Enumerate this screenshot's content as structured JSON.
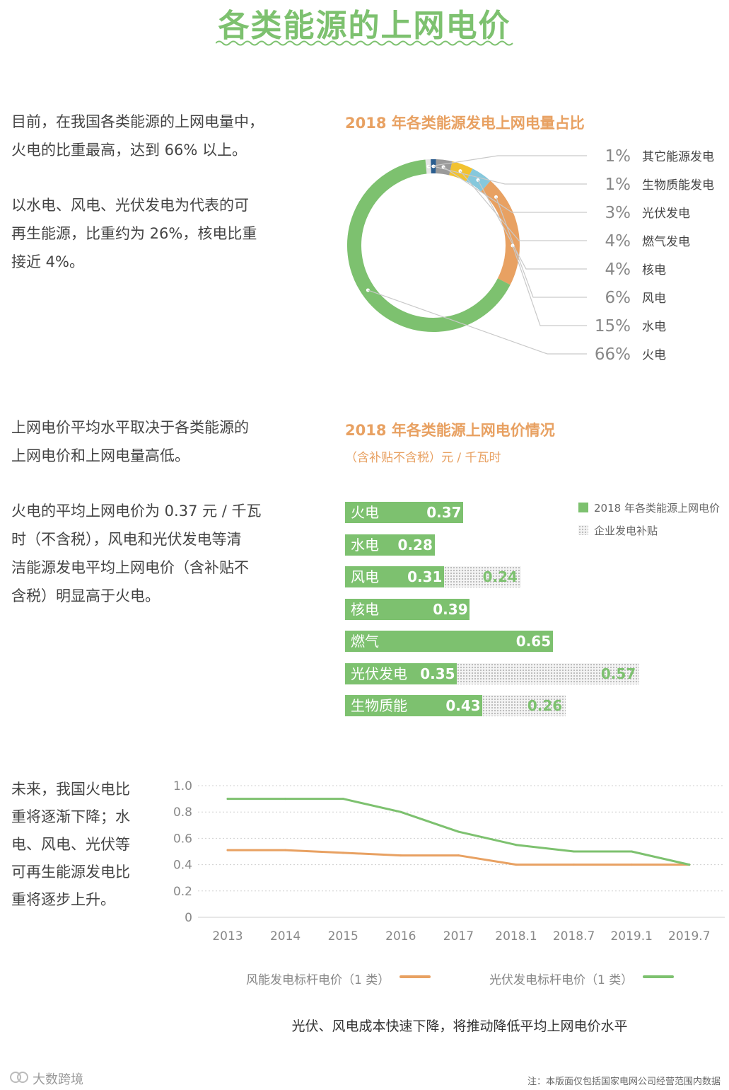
{
  "title": "各类能源的上网电价",
  "intro": {
    "p1": "目前，在我国各类能源的上网电量中，\n火电的比重最高，达到 66% 以上。",
    "p2": "以水电、风电、光伏发电为代表的可\n再生能源，比重约为 26%，核电比重\n接近 4%。",
    "p3": "上网电价平均水平取决于各类能源的\n上网电价和上网电量高低。",
    "p4": "火电的平均上网电价为 0.37 元 / 千瓦\n时（不含税），风电和光伏发电等清\n洁能源发电平均上网电价（含补贴不\n含税）明显高于火电。",
    "p5": "未来，我国火电比\n重将逐渐下降；水\n电、风电、光伏等\n可再生能源发电比\n重将逐步上升。"
  },
  "colors": {
    "green": "#7dc16f",
    "orange": "#e8a162"
  },
  "chart_data": [
    {
      "type": "pie",
      "title": "2018 年各类能源发电上网电量占比",
      "slices": [
        {
          "name": "其它能源发电",
          "value": 1,
          "label": "1%",
          "color": "#e6e6e6"
        },
        {
          "name": "生物质能发电",
          "value": 1,
          "label": "1%",
          "color": "#2a5d8f"
        },
        {
          "name": "光伏发电",
          "value": 3,
          "label": "3%",
          "color": "#9a9a9a"
        },
        {
          "name": "燃气发电",
          "value": 4,
          "label": "4%",
          "color": "#f2c230"
        },
        {
          "name": "核电",
          "value": 4,
          "label": "4%",
          "color": "#86c8dc"
        },
        {
          "name": "风电",
          "value": 6,
          "label": "6%",
          "color": "#e8a162"
        },
        {
          "name": "水电",
          "value": 15,
          "label": "15%",
          "color": "#e8a162"
        },
        {
          "name": "火电",
          "value": 66,
          "label": "66%",
          "color": "#7dc16f"
        }
      ]
    },
    {
      "type": "bar",
      "title": "2018 年各类能源上网电价情况",
      "subtitle": "（含补贴不含税）元 / 千瓦时",
      "categories": [
        "火电",
        "水电",
        "风电",
        "核电",
        "燃气",
        "光伏发电",
        "生物质能"
      ],
      "series": [
        {
          "name": "2018 年各类能源上网电价",
          "values": [
            0.37,
            0.28,
            0.31,
            0.39,
            0.65,
            0.35,
            0.43
          ]
        },
        {
          "name": "企业发电补贴",
          "values": [
            null,
            null,
            0.24,
            null,
            null,
            0.57,
            0.26
          ]
        }
      ]
    },
    {
      "type": "line",
      "x": [
        "2013",
        "2014",
        "2015",
        "2016",
        "2017",
        "2018.1",
        "2018.7",
        "2019.1",
        "2019.7"
      ],
      "ylim": [
        0,
        1.0
      ],
      "yticks": [
        "0",
        "0.2",
        "0.4",
        "0.6",
        "0.8",
        "1.0"
      ],
      "grid": true,
      "series": [
        {
          "name": "风能发电标杆电价（1 类）",
          "values": [
            0.51,
            0.51,
            0.49,
            0.47,
            0.47,
            0.4,
            0.4,
            0.4,
            0.4
          ],
          "color": "#e8a162"
        },
        {
          "name": "光伏发电标杆电价（1 类）",
          "values": [
            0.9,
            0.9,
            0.9,
            0.8,
            0.65,
            0.55,
            0.5,
            0.5,
            0.4
          ],
          "color": "#7dc16f"
        }
      ]
    }
  ],
  "caption": "光伏、风电成本快速下降，将推动降低平均上网电价水平",
  "footnote": "注：本版面仅包括国家电网公司经营范围内数据",
  "brand": "大数跨境"
}
